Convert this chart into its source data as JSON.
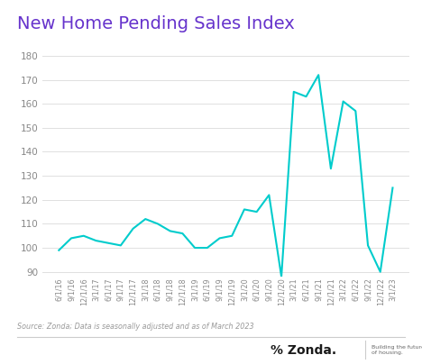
{
  "title": "New Home Pending Sales Index",
  "title_color": "#6633CC",
  "line_color": "#00CCCC",
  "background_color": "#FFFFFF",
  "source_text": "Source: Zonda; Data is seasonally adjusted and as of March 2023",
  "ylim": [
    88,
    182
  ],
  "yticks": [
    90,
    100,
    110,
    120,
    130,
    140,
    150,
    160,
    170,
    180
  ],
  "values": [
    99,
    104,
    105,
    103,
    102,
    101,
    108,
    112,
    110,
    107,
    106,
    100,
    100,
    104,
    105,
    116,
    115,
    122,
    88,
    165,
    163,
    172,
    133,
    161,
    157,
    101,
    90,
    125
  ],
  "xtick_labels": [
    "6/1/16",
    "9/1/16",
    "12/1/16",
    "3/1/17",
    "6/1/17",
    "9/1/17",
    "12/1/17",
    "3/1/18",
    "6/1/18",
    "9/1/18",
    "12/1/18",
    "3/1/19",
    "6/1/19",
    "9/1/19",
    "12/1/19",
    "3/1/20",
    "6/1/20",
    "9/1/20",
    "12/1/20",
    "3/1/21",
    "6/1/21",
    "9/1/21",
    "12/1/21",
    "3/1/22",
    "6/1/22",
    "9/1/22",
    "12/1/22",
    "3/1/23"
  ],
  "zonda_logo": "% Zonda.",
  "zonda_tagline": "Building the future\nof housing.",
  "separator_color": "#CCCCCC",
  "grid_color": "#E0E0E0",
  "tick_color": "#888888",
  "source_color": "#999999",
  "title_fontsize": 14,
  "ytick_fontsize": 7.5,
  "xtick_fontsize": 5.8,
  "source_fontsize": 5.8,
  "line_width": 1.5
}
